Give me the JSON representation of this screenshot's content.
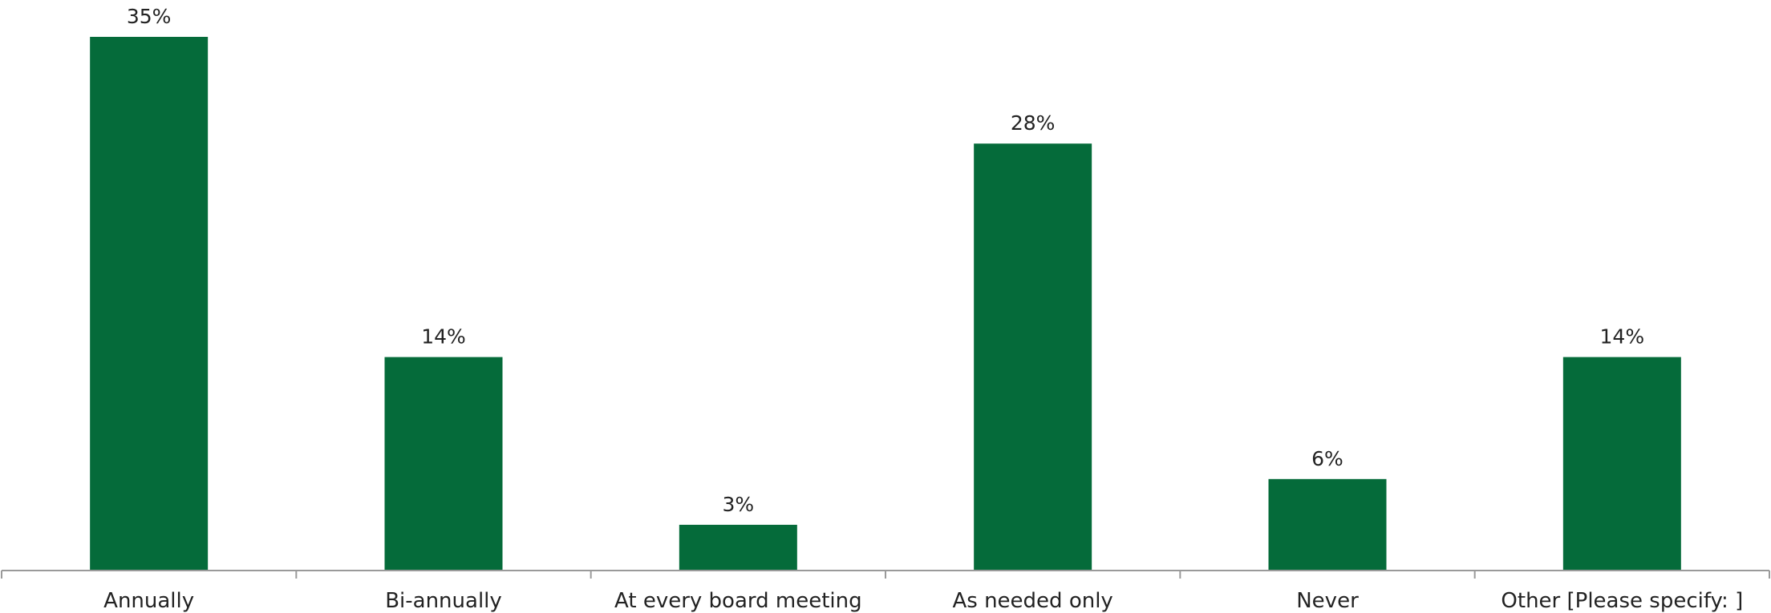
{
  "chart_data": {
    "type": "bar",
    "categories": [
      "Annually",
      "Bi-annually",
      "At every board meeting",
      "As needed only",
      "Never",
      "Other [Please specify: ]"
    ],
    "values": [
      35,
      14,
      3,
      28,
      6,
      14
    ],
    "value_labels": [
      "35%",
      "14%",
      "3%",
      "28%",
      "6%",
      "14%"
    ],
    "title": "",
    "xlabel": "",
    "ylabel": "",
    "ylim": [
      0,
      35
    ],
    "grid": false,
    "bar_color": "#056b3a"
  }
}
